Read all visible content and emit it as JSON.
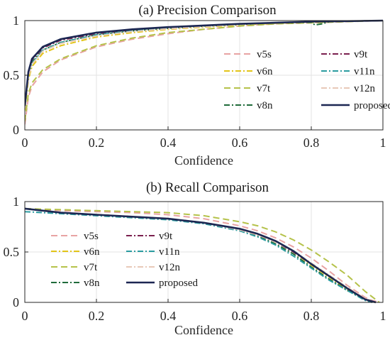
{
  "colors": {
    "v5s": "#e8a3a3",
    "v6n": "#e2c418",
    "v7t": "#b5c24a",
    "v8n": "#1f6b3a",
    "v9t": "#7a1f4e",
    "v11n": "#2a9ba0",
    "v12n": "#e8c9b8",
    "proposed": "#1c2752"
  },
  "chart_data": [
    {
      "type": "line",
      "title": "(a) Precision Comparison",
      "xlabel": "Confidence",
      "ylabel": "",
      "xlim": [
        0,
        1
      ],
      "ylim": [
        0,
        1
      ],
      "xticks": [
        0,
        0.2,
        0.4,
        0.6,
        0.8,
        1
      ],
      "xtick_labels": [
        "0",
        "0.2",
        "0.4",
        "0.6",
        "0.8",
        "1"
      ],
      "yticks": [
        0,
        0.5,
        1
      ],
      "ytick_labels": [
        "0",
        "0.5",
        "1"
      ],
      "grid": true,
      "legend_position": "right",
      "series": [
        {
          "name": "v5s",
          "style": "dashed",
          "x": [
            0,
            0.01,
            0.02,
            0.05,
            0.1,
            0.2,
            0.3,
            0.4,
            0.5,
            0.6,
            0.7,
            0.8,
            0.9,
            1
          ],
          "y": [
            0.05,
            0.3,
            0.4,
            0.53,
            0.64,
            0.76,
            0.83,
            0.88,
            0.92,
            0.95,
            0.97,
            0.98,
            0.99,
            1.0
          ]
        },
        {
          "name": "v6n",
          "style": "dashdot",
          "x": [
            0,
            0.01,
            0.02,
            0.05,
            0.1,
            0.2,
            0.3,
            0.4,
            0.5,
            0.6,
            0.7,
            0.8,
            0.85,
            0.9,
            1
          ],
          "y": [
            0.18,
            0.46,
            0.58,
            0.7,
            0.77,
            0.85,
            0.89,
            0.92,
            0.94,
            0.96,
            0.975,
            0.985,
            0.99,
            0.995,
            1.0
          ]
        },
        {
          "name": "v7t",
          "style": "dashed",
          "x": [
            0,
            0.01,
            0.02,
            0.05,
            0.1,
            0.2,
            0.3,
            0.4,
            0.5,
            0.6,
            0.7,
            0.8,
            0.9,
            1
          ],
          "y": [
            0.08,
            0.33,
            0.43,
            0.55,
            0.65,
            0.77,
            0.84,
            0.89,
            0.92,
            0.95,
            0.97,
            0.98,
            0.99,
            1.0
          ]
        },
        {
          "name": "v8n",
          "style": "dashdot",
          "x": [
            0,
            0.01,
            0.02,
            0.05,
            0.1,
            0.2,
            0.3,
            0.4,
            0.5,
            0.6,
            0.7,
            0.8,
            0.81,
            0.83,
            0.85,
            0.9,
            1
          ],
          "y": [
            0.2,
            0.5,
            0.62,
            0.73,
            0.8,
            0.87,
            0.905,
            0.93,
            0.95,
            0.965,
            0.98,
            0.985,
            0.96,
            0.97,
            0.99,
            0.995,
            1.0
          ]
        },
        {
          "name": "v9t",
          "style": "dashdot",
          "x": [
            0,
            0.01,
            0.02,
            0.05,
            0.1,
            0.2,
            0.3,
            0.4,
            0.5,
            0.6,
            0.7,
            0.8,
            0.9,
            1
          ],
          "y": [
            0.2,
            0.52,
            0.64,
            0.75,
            0.82,
            0.88,
            0.915,
            0.94,
            0.955,
            0.97,
            0.98,
            0.99,
            0.995,
            1.0
          ]
        },
        {
          "name": "v11n",
          "style": "dashdot",
          "x": [
            0,
            0.01,
            0.02,
            0.05,
            0.1,
            0.2,
            0.3,
            0.4,
            0.5,
            0.6,
            0.7,
            0.8,
            0.9,
            1
          ],
          "y": [
            0.21,
            0.5,
            0.61,
            0.73,
            0.8,
            0.87,
            0.905,
            0.93,
            0.95,
            0.965,
            0.98,
            0.99,
            0.995,
            1.0
          ]
        },
        {
          "name": "v12n",
          "style": "dashdot",
          "x": [
            0,
            0.01,
            0.02,
            0.05,
            0.1,
            0.2,
            0.3,
            0.4,
            0.5,
            0.6,
            0.7,
            0.8,
            0.9,
            1
          ],
          "y": [
            0.2,
            0.48,
            0.6,
            0.72,
            0.79,
            0.86,
            0.9,
            0.925,
            0.945,
            0.965,
            0.98,
            0.99,
            0.995,
            1.0
          ]
        },
        {
          "name": "proposed",
          "style": "solid",
          "x": [
            0,
            0.01,
            0.02,
            0.05,
            0.1,
            0.2,
            0.3,
            0.4,
            0.5,
            0.6,
            0.7,
            0.8,
            0.9,
            1
          ],
          "y": [
            0.22,
            0.53,
            0.65,
            0.76,
            0.83,
            0.89,
            0.92,
            0.94,
            0.955,
            0.97,
            0.98,
            0.99,
            0.995,
            1.0
          ]
        }
      ]
    },
    {
      "type": "line",
      "title": "(b) Recall Comparison",
      "xlabel": "Confidence",
      "ylabel": "",
      "xlim": [
        0,
        1
      ],
      "ylim": [
        0,
        1
      ],
      "xticks": [
        0,
        0.2,
        0.4,
        0.6,
        0.8,
        1
      ],
      "xtick_labels": [
        "0",
        "0.2",
        "0.4",
        "0.6",
        "0.8",
        "1"
      ],
      "yticks": [
        0,
        0.5,
        1
      ],
      "ytick_labels": [
        "0",
        "0.5",
        "1"
      ],
      "grid": true,
      "legend_position": "left",
      "series": [
        {
          "name": "v5s",
          "style": "dashed",
          "x": [
            0,
            0.1,
            0.2,
            0.3,
            0.4,
            0.5,
            0.6,
            0.65,
            0.7,
            0.75,
            0.8,
            0.85,
            0.9,
            0.95,
            0.97,
            0.99
          ],
          "y": [
            0.93,
            0.91,
            0.9,
            0.89,
            0.87,
            0.83,
            0.76,
            0.71,
            0.64,
            0.55,
            0.44,
            0.31,
            0.17,
            0.05,
            0.02,
            0.0
          ]
        },
        {
          "name": "v6n",
          "style": "dashdot",
          "x": [
            0,
            0.1,
            0.2,
            0.3,
            0.4,
            0.5,
            0.6,
            0.65,
            0.7,
            0.75,
            0.8,
            0.85,
            0.9,
            0.95,
            0.97
          ],
          "y": [
            0.93,
            0.89,
            0.87,
            0.85,
            0.83,
            0.79,
            0.72,
            0.67,
            0.6,
            0.5,
            0.37,
            0.25,
            0.13,
            0.03,
            0.0
          ]
        },
        {
          "name": "v7t",
          "style": "dashed",
          "x": [
            0,
            0.1,
            0.2,
            0.3,
            0.4,
            0.5,
            0.6,
            0.65,
            0.7,
            0.75,
            0.8,
            0.85,
            0.9,
            0.95,
            0.99
          ],
          "y": [
            0.93,
            0.92,
            0.91,
            0.9,
            0.89,
            0.86,
            0.8,
            0.76,
            0.7,
            0.62,
            0.52,
            0.4,
            0.27,
            0.11,
            0.0
          ]
        },
        {
          "name": "v8n",
          "style": "dashdot",
          "x": [
            0,
            0.1,
            0.2,
            0.3,
            0.4,
            0.5,
            0.6,
            0.65,
            0.7,
            0.75,
            0.8,
            0.85,
            0.9,
            0.95,
            0.97
          ],
          "y": [
            0.93,
            0.89,
            0.87,
            0.85,
            0.83,
            0.79,
            0.72,
            0.66,
            0.58,
            0.48,
            0.35,
            0.23,
            0.12,
            0.03,
            0.0
          ]
        },
        {
          "name": "v9t",
          "style": "dashdot",
          "x": [
            0,
            0.1,
            0.2,
            0.3,
            0.4,
            0.5,
            0.6,
            0.65,
            0.7,
            0.75,
            0.8,
            0.85,
            0.9,
            0.95,
            0.98
          ],
          "y": [
            0.93,
            0.89,
            0.87,
            0.85,
            0.83,
            0.79,
            0.72,
            0.67,
            0.6,
            0.5,
            0.38,
            0.26,
            0.14,
            0.03,
            0.0
          ]
        },
        {
          "name": "v11n",
          "style": "dashdot",
          "x": [
            0,
            0.1,
            0.2,
            0.3,
            0.4,
            0.5,
            0.6,
            0.65,
            0.7,
            0.75,
            0.8,
            0.85,
            0.9,
            0.95,
            0.97
          ],
          "y": [
            0.9,
            0.88,
            0.86,
            0.84,
            0.82,
            0.78,
            0.71,
            0.65,
            0.57,
            0.46,
            0.34,
            0.22,
            0.12,
            0.02,
            0.0
          ]
        },
        {
          "name": "v12n",
          "style": "dashdot",
          "x": [
            0,
            0.1,
            0.2,
            0.3,
            0.4,
            0.5,
            0.6,
            0.65,
            0.7,
            0.75,
            0.8,
            0.85,
            0.9,
            0.95,
            0.98
          ],
          "y": [
            0.93,
            0.89,
            0.87,
            0.85,
            0.83,
            0.79,
            0.72,
            0.67,
            0.6,
            0.51,
            0.39,
            0.27,
            0.15,
            0.04,
            0.0
          ]
        },
        {
          "name": "proposed",
          "style": "solid",
          "x": [
            0,
            0.1,
            0.2,
            0.3,
            0.4,
            0.5,
            0.6,
            0.65,
            0.7,
            0.75,
            0.8,
            0.85,
            0.9,
            0.95,
            0.98
          ],
          "y": [
            0.93,
            0.89,
            0.87,
            0.85,
            0.83,
            0.79,
            0.73,
            0.68,
            0.61,
            0.51,
            0.38,
            0.26,
            0.14,
            0.03,
            0.0
          ]
        }
      ]
    }
  ]
}
